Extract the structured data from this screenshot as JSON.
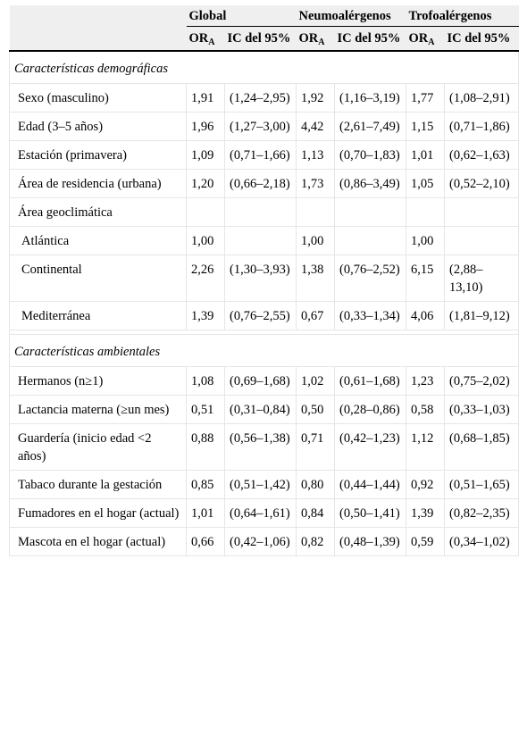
{
  "header": {
    "groups": [
      "Global",
      "Neumoalérgenos",
      "Trofoalérgenos"
    ],
    "or_label": "OR",
    "or_sub": "A",
    "ci_label": "IC del 95%"
  },
  "sections": [
    {
      "title": "Características demográficas",
      "rows": [
        {
          "label": "Sexo (masculino)",
          "level": 1,
          "values": [
            "1,91",
            "(1,24–2,95)",
            "1,92",
            "(1,16–3,19)",
            "1,77",
            "(1,08–2,91)"
          ]
        },
        {
          "label": "Edad (3–5 años)",
          "level": 1,
          "values": [
            "1,96",
            "(1,27–3,00)",
            "4,42",
            "(2,61–7,49)",
            "1,15",
            "(0,71–1,86)"
          ]
        },
        {
          "label": "Estación (primavera)",
          "level": 1,
          "values": [
            "1,09",
            "(0,71–1,66)",
            "1,13",
            "(0,70–1,83)",
            "1,01",
            "(0,62–1,63)"
          ]
        },
        {
          "label": "Área de residencia (urbana)",
          "level": 1,
          "values": [
            "1,20",
            "(0,66–2,18)",
            "1,73",
            "(0,86–3,49)",
            "1,05",
            "(0,52–2,10)"
          ]
        },
        {
          "label": "Área geoclimática",
          "level": 1,
          "values": [
            "",
            "",
            "",
            "",
            "",
            ""
          ]
        },
        {
          "label": "Atlántica",
          "level": 2,
          "values": [
            "1,00",
            "",
            "1,00",
            "",
            "1,00",
            ""
          ]
        },
        {
          "label": "Continental",
          "level": 2,
          "values": [
            "2,26",
            "(1,30–3,93)",
            "1,38",
            "(0,76–2,52)",
            "6,15",
            "(2,88–13,10)"
          ]
        },
        {
          "label": "Mediterránea",
          "level": 2,
          "values": [
            "1,39",
            "(0,76–2,55)",
            "0,67",
            "(0,33–1,34)",
            "4,06",
            "(1,81–9,12)"
          ]
        }
      ]
    },
    {
      "title": "Características ambientales",
      "rows": [
        {
          "label": "Hermanos (n≥1)",
          "level": 1,
          "values": [
            "1,08",
            "(0,69–1,68)",
            "1,02",
            "(0,61–1,68)",
            "1,23",
            "(0,75–2,02)"
          ]
        },
        {
          "label": "Lactancia materna (≥un mes)",
          "level": 1,
          "values": [
            "0,51",
            "(0,31–0,84)",
            "0,50",
            "(0,28–0,86)",
            "0,58",
            "(0,33–1,03)"
          ]
        },
        {
          "label": "Guardería (inicio edad <2 años)",
          "level": 1,
          "values": [
            "0,88",
            "(0,56–1,38)",
            "0,71",
            "(0,42–1,23)",
            "1,12",
            "(0,68–1,85)"
          ]
        },
        {
          "label": "Tabaco durante la gestación",
          "level": 1,
          "values": [
            "0,85",
            "(0,51–1,42)",
            "0,80",
            "(0,44–1,44)",
            "0,92",
            "(0,51–1,65)"
          ]
        },
        {
          "label": "Fumadores en el hogar (actual)",
          "level": 1,
          "values": [
            "1,01",
            "(0,64–1,61)",
            "0,84",
            "(0,50–1,41)",
            "1,39",
            "(0,82–2,35)"
          ]
        },
        {
          "label": "Mascota en el hogar (actual)",
          "level": 1,
          "values": [
            "0,66",
            "(0,42–1,06)",
            "0,82",
            "(0,48–1,39)",
            "0,59",
            "(0,34–1,02)"
          ]
        }
      ]
    }
  ]
}
